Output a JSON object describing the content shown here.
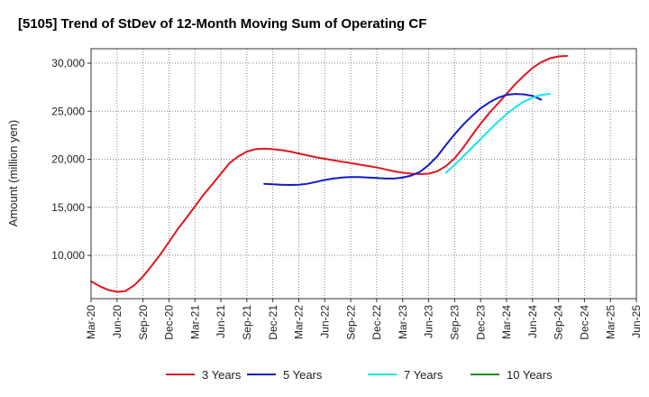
{
  "chart_data": {
    "type": "line",
    "title": "[5105]  Trend of StDev of 12-Month Moving Sum of Operating CF",
    "xlabel": "",
    "ylabel": "Amount (million yen)",
    "ylim": [
      5500,
      31500
    ],
    "yticks": [
      10000,
      15000,
      20000,
      25000,
      30000
    ],
    "ytick_labels": [
      "10,000",
      "15,000",
      "20,000",
      "25,000",
      "30,000"
    ],
    "x_categories": [
      "Mar-20",
      "Jun-20",
      "Sep-20",
      "Dec-20",
      "Mar-21",
      "Jun-21",
      "Sep-21",
      "Dec-21",
      "Mar-22",
      "Jun-22",
      "Sep-22",
      "Dec-22",
      "Mar-23",
      "Jun-23",
      "Sep-23",
      "Dec-23",
      "Mar-24",
      "Jun-24",
      "Sep-24",
      "Dec-24",
      "Mar-25",
      "Jun-25"
    ],
    "grid": true,
    "legend_position": "bottom",
    "series": [
      {
        "name": "3 Years",
        "color": "#e0161c",
        "points": [
          [
            0,
            7300
          ],
          [
            0.33,
            6800
          ],
          [
            0.67,
            6400
          ],
          [
            1,
            6200
          ],
          [
            1.33,
            6300
          ],
          [
            1.67,
            6900
          ],
          [
            2,
            7800
          ],
          [
            2.33,
            8900
          ],
          [
            2.67,
            10100
          ],
          [
            3,
            11400
          ],
          [
            3.33,
            12700
          ],
          [
            3.67,
            13900
          ],
          [
            4,
            15100
          ],
          [
            4.33,
            16300
          ],
          [
            4.67,
            17400
          ],
          [
            5,
            18500
          ],
          [
            5.33,
            19600
          ],
          [
            5.67,
            20300
          ],
          [
            6,
            20800
          ],
          [
            6.33,
            21050
          ],
          [
            6.67,
            21100
          ],
          [
            7,
            21050
          ],
          [
            7.33,
            20950
          ],
          [
            7.67,
            20800
          ],
          [
            8,
            20600
          ],
          [
            8.33,
            20400
          ],
          [
            8.67,
            20200
          ],
          [
            9,
            20050
          ],
          [
            9.33,
            19900
          ],
          [
            9.67,
            19750
          ],
          [
            10,
            19600
          ],
          [
            10.33,
            19450
          ],
          [
            10.67,
            19300
          ],
          [
            11,
            19150
          ],
          [
            11.33,
            18950
          ],
          [
            11.67,
            18750
          ],
          [
            12,
            18600
          ],
          [
            12.33,
            18500
          ],
          [
            12.67,
            18450
          ],
          [
            13,
            18500
          ],
          [
            13.33,
            18750
          ],
          [
            13.67,
            19300
          ],
          [
            14,
            20100
          ],
          [
            14.33,
            21200
          ],
          [
            14.67,
            22500
          ],
          [
            15,
            23700
          ],
          [
            15.33,
            24800
          ],
          [
            15.67,
            25800
          ],
          [
            16,
            26800
          ],
          [
            16.33,
            27800
          ],
          [
            16.67,
            28700
          ],
          [
            17,
            29500
          ],
          [
            17.33,
            30100
          ],
          [
            17.67,
            30500
          ],
          [
            18,
            30700
          ],
          [
            18.33,
            30750
          ]
        ]
      },
      {
        "name": "5 Years",
        "color": "#1419c8",
        "points": [
          [
            6.67,
            17450
          ],
          [
            7,
            17400
          ],
          [
            7.33,
            17350
          ],
          [
            7.67,
            17330
          ],
          [
            8,
            17350
          ],
          [
            8.33,
            17450
          ],
          [
            8.67,
            17650
          ],
          [
            9,
            17850
          ],
          [
            9.33,
            18000
          ],
          [
            9.67,
            18100
          ],
          [
            10,
            18150
          ],
          [
            10.33,
            18150
          ],
          [
            10.67,
            18100
          ],
          [
            11,
            18050
          ],
          [
            11.33,
            18000
          ],
          [
            11.67,
            18000
          ],
          [
            12,
            18100
          ],
          [
            12.33,
            18300
          ],
          [
            12.67,
            18700
          ],
          [
            13,
            19400
          ],
          [
            13.33,
            20300
          ],
          [
            13.67,
            21500
          ],
          [
            14,
            22600
          ],
          [
            14.33,
            23600
          ],
          [
            14.67,
            24500
          ],
          [
            15,
            25300
          ],
          [
            15.33,
            25900
          ],
          [
            15.67,
            26400
          ],
          [
            16,
            26700
          ],
          [
            16.33,
            26800
          ],
          [
            16.67,
            26750
          ],
          [
            17,
            26600
          ],
          [
            17.33,
            26200
          ]
        ]
      },
      {
        "name": "7 Years",
        "color": "#12e6ee",
        "points": [
          [
            13.67,
            18600
          ],
          [
            14,
            19400
          ],
          [
            14.33,
            20300
          ],
          [
            14.67,
            21200
          ],
          [
            15,
            22100
          ],
          [
            15.33,
            23000
          ],
          [
            15.67,
            23900
          ],
          [
            16,
            24700
          ],
          [
            16.33,
            25400
          ],
          [
            16.67,
            26000
          ],
          [
            17,
            26400
          ],
          [
            17.33,
            26700
          ],
          [
            17.67,
            26800
          ]
        ]
      },
      {
        "name": "10 Years",
        "color": "#1c8c1c",
        "points": []
      }
    ]
  }
}
